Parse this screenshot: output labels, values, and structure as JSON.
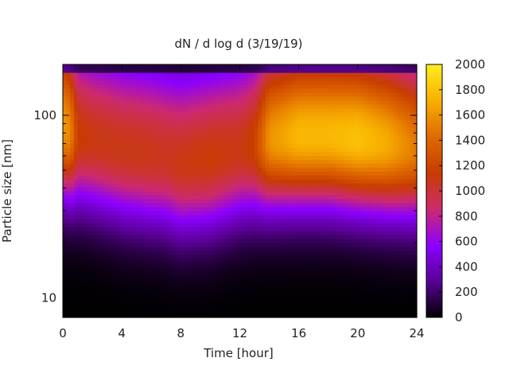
{
  "chart_data": {
    "type": "heatmap",
    "title": "dN / d log d (3/19/19)",
    "xlabel": "Time [hour]",
    "ylabel": "Particle size [nm]",
    "xlim": [
      0,
      24
    ],
    "ylim": [
      7.8,
      190
    ],
    "y_scale": "log",
    "x_ticks": [
      0,
      4,
      8,
      12,
      16,
      20,
      24
    ],
    "y_ticks": [
      10,
      100
    ],
    "colorbar": {
      "range": [
        0,
        2000
      ],
      "ticks": [
        0,
        200,
        400,
        600,
        800,
        1000,
        1200,
        1400,
        1600,
        1800,
        2000
      ],
      "palette": [
        "#000000",
        "#5a0096",
        "#8c00ff",
        "#cc2a6e",
        "#c83c00",
        "#e06a00",
        "#f8b000",
        "#ffee20"
      ]
    },
    "profiles": {
      "description_free": true,
      "times": [
        0,
        0.5,
        1,
        2,
        4,
        6,
        7,
        8,
        10,
        12,
        13,
        14,
        16,
        18,
        20,
        22,
        24
      ],
      "peak_value": [
        1500,
        1450,
        1050,
        1000,
        1000,
        1000,
        980,
        1020,
        1050,
        1000,
        1080,
        1500,
        1650,
        1650,
        1700,
        1600,
        1400
      ],
      "peak_diameter": [
        85,
        80,
        75,
        70,
        62,
        58,
        56,
        52,
        55,
        62,
        66,
        72,
        75,
        75,
        72,
        68,
        64
      ]
    }
  }
}
